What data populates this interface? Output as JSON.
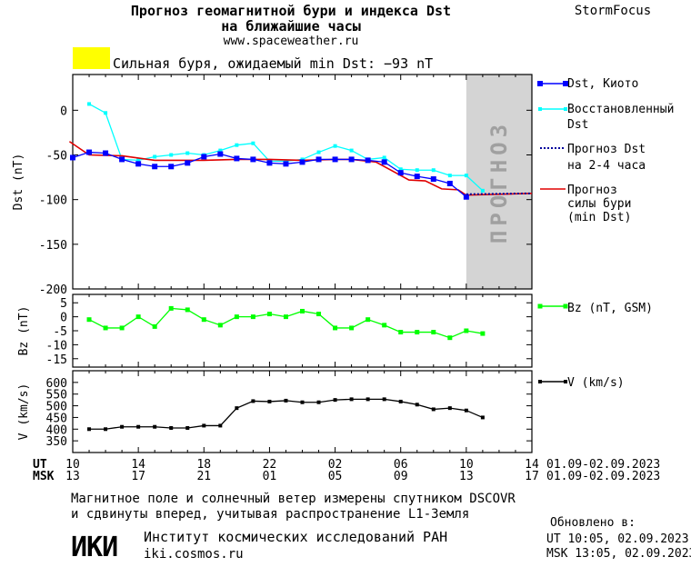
{
  "header": {
    "title_line1": "Прогноз геомагнитной бури и индекса Dst",
    "title_line2": "на ближайшие часы",
    "url": "www.spaceweather.ru",
    "brand": "StormFocus",
    "storm_label": "Сильная буря, ожидаемый min Dst: −93 nT",
    "storm_color": "#ffff00"
  },
  "legend": {
    "dst_kyoto": "Dst, Киото",
    "restored_1": "Восстановленный",
    "restored_2": "Dst",
    "forecast_1": "Прогноз Dst",
    "forecast_2": "на 2-4 часа",
    "storm_1": "Прогноз",
    "storm_2": "силы бури",
    "storm_3": "(min Dst)",
    "bz": "Bz (nT, GSM)",
    "v": "V (km/s)"
  },
  "forecast_band_label": "ПРОГНОЗ",
  "time_axis": {
    "ut_label": "UT",
    "msk_label": "MSK",
    "ut_ticks": [
      "10",
      "14",
      "18",
      "22",
      "02",
      "06",
      "10",
      "14"
    ],
    "msk_ticks": [
      "13",
      "17",
      "21",
      "01",
      "05",
      "09",
      "13",
      "17"
    ],
    "ut_range": "01.09-02.09.2023",
    "msk_range": "01.09-02.09.2023"
  },
  "footer": {
    "note_line1": "Магнитное поле и солнечный ветер измерены спутником DSCOVR",
    "note_line2": "и сдвинуты вперед, учитывая распространение L1-Земля",
    "logo_text": "ИКИ",
    "institute": "Институт космических исследований РАН",
    "site": "iki.cosmos.ru",
    "updated_label": "Обновлено в:",
    "updated_ut": "UT  10:05, 02.09.2023",
    "updated_msk": "MSK 13:05, 02.09.2023"
  },
  "colors": {
    "dst": "#0000ff",
    "restored": "#00ffff",
    "forecast": "#00009c",
    "storm": "#e00000",
    "bz": "#00ff00",
    "v": "#000000",
    "band": "#d4d4d4"
  },
  "chart_data": [
    {
      "type": "line",
      "ylabel": "Dst (nT)",
      "xlim": [
        0,
        28
      ],
      "ylim": [
        -200,
        40
      ],
      "yticks": [
        0,
        -50,
        -100,
        -150,
        -200
      ],
      "forecast_band_x": [
        24,
        28
      ],
      "series": [
        {
          "name": "Dst, Киото",
          "x": [
            0,
            1,
            2,
            3,
            4,
            5,
            6,
            7,
            8,
            9,
            10,
            11,
            12,
            13,
            14,
            15,
            16,
            17,
            18,
            19,
            20,
            21,
            22,
            23,
            24
          ],
          "y": [
            -53,
            -47,
            -48,
            -55,
            -60,
            -63,
            -63,
            -59,
            -52,
            -49,
            -54,
            -55,
            -59,
            -60,
            -58,
            -55,
            -55,
            -55,
            -56,
            -58,
            -70,
            -74,
            -77,
            -82,
            -97
          ]
        },
        {
          "name": "Восстановленный Dst",
          "x": [
            1,
            2,
            3,
            4,
            5,
            6,
            7,
            8,
            9,
            10,
            11,
            12,
            13,
            14,
            15,
            16,
            17,
            18,
            19,
            20,
            21,
            22,
            23,
            24,
            25
          ],
          "y": [
            7,
            -3,
            -55,
            -56,
            -52,
            -50,
            -48,
            -50,
            -45,
            -39,
            -37,
            -57,
            -57,
            -55,
            -47,
            -40,
            -45,
            -55,
            -53,
            -66,
            -67,
            -67,
            -73,
            -73,
            -90
          ]
        },
        {
          "name": "Прогноз Dst на 2-4 часа",
          "x": [
            24,
            28
          ],
          "y": [
            -94,
            -93
          ]
        },
        {
          "name": "Прогноз силы бури (min Dst)",
          "x": [
            -0.2,
            1,
            3,
            5,
            8,
            10,
            12,
            14,
            16,
            17,
            18.5,
            19.5,
            20.5,
            21.5,
            22.5,
            23.5,
            24,
            28
          ],
          "y": [
            -35,
            -50,
            -51,
            -56,
            -56,
            -55,
            -55,
            -56,
            -55,
            -55,
            -58,
            -68,
            -78,
            -79,
            -88,
            -89,
            -95,
            -93
          ]
        }
      ]
    },
    {
      "type": "line",
      "ylabel": "Bz (nT)",
      "xlim": [
        0,
        28
      ],
      "ylim": [
        -18,
        8
      ],
      "yticks": [
        5,
        0,
        -5,
        -10,
        -15
      ],
      "series": [
        {
          "name": "Bz (nT, GSM)",
          "x": [
            1,
            2,
            3,
            4,
            5,
            6,
            7,
            8,
            9,
            10,
            11,
            12,
            13,
            14,
            15,
            16,
            17,
            18,
            19,
            20,
            21,
            22,
            23,
            24,
            25
          ],
          "y": [
            -1,
            -4,
            -4,
            0,
            -3.5,
            3,
            2.5,
            -1,
            -3,
            0,
            0,
            1,
            0,
            2,
            1,
            -4,
            -4,
            -1,
            -3,
            -5.5,
            -5.5,
            -5.5,
            -7.5,
            -5,
            -6
          ]
        }
      ]
    },
    {
      "type": "line",
      "ylabel": "V (km/s)",
      "xlim": [
        0,
        28
      ],
      "ylim": [
        300,
        650
      ],
      "yticks": [
        600,
        550,
        500,
        450,
        400,
        350
      ],
      "series": [
        {
          "name": "V (km/s)",
          "x": [
            1,
            2,
            3,
            4,
            5,
            6,
            7,
            8,
            9,
            10,
            11,
            12,
            13,
            14,
            15,
            16,
            17,
            18,
            19,
            20,
            21,
            22,
            23,
            24,
            25
          ],
          "y": [
            400,
            400,
            410,
            410,
            410,
            405,
            405,
            415,
            415,
            490,
            520,
            518,
            522,
            515,
            515,
            525,
            528,
            528,
            528,
            518,
            505,
            485,
            490,
            480,
            450
          ]
        }
      ]
    }
  ]
}
